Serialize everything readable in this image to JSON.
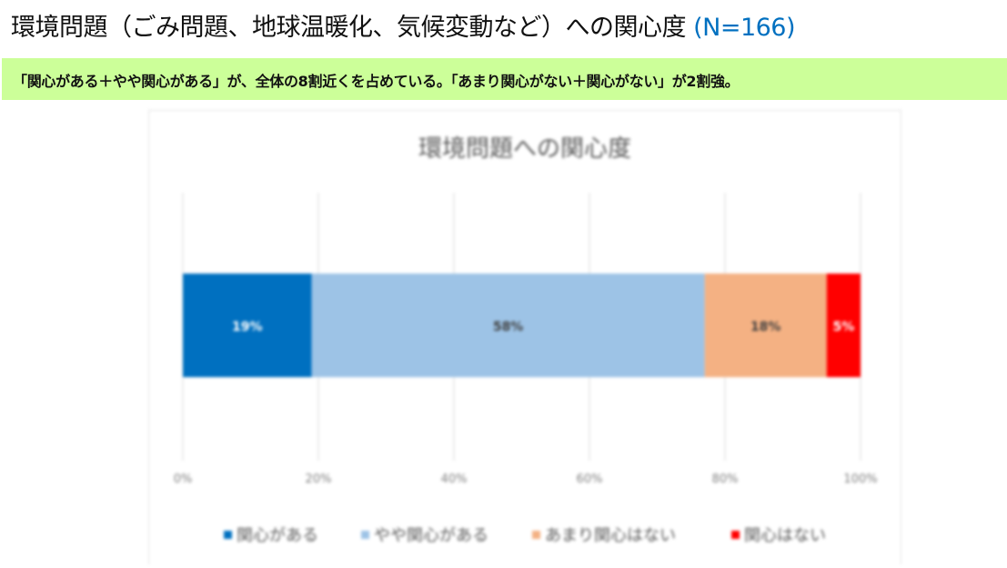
{
  "header": {
    "title": "環境問題（ごみ問題、地球温暖化、気候変動など）への関心度",
    "n_label": "(N=166)"
  },
  "banner": {
    "text": "「関心がある＋やや関心がある」が、全体の8割近くを占めている。「あまり関心がない＋関心がない」が2割強。"
  },
  "chart_data": {
    "type": "bar",
    "orientation": "horizontal-stacked-100",
    "title": "環境問題への関心度",
    "xlim": [
      0,
      100
    ],
    "x_ticks": [
      "0%",
      "20%",
      "40%",
      "60%",
      "80%",
      "100%"
    ],
    "grid": true,
    "legend_position": "bottom",
    "series": [
      {
        "name": "関心がある",
        "value": 19,
        "label": "19%",
        "color": "#0070c0",
        "label_color": "#ffffff"
      },
      {
        "name": "やや関心がある",
        "value": 58,
        "label": "58%",
        "color": "#9dc3e6",
        "label_color": "#404040"
      },
      {
        "name": "あまり関心はない",
        "value": 18,
        "label": "18%",
        "color": "#f4b183",
        "label_color": "#404040"
      },
      {
        "name": "関心はない",
        "value": 5,
        "label": "5%",
        "color": "#ff0000",
        "label_color": "#ffffff"
      }
    ]
  }
}
